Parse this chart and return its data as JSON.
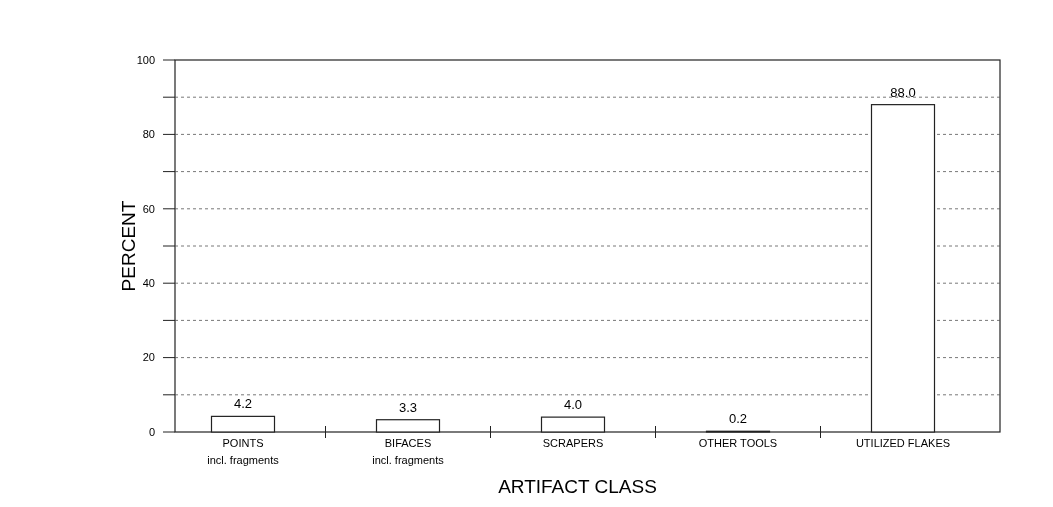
{
  "chart_data": {
    "type": "bar",
    "categories": [
      "POINTS\nincl. fragments",
      "BIFACES\nincl. fragments",
      "SCRAPERS",
      "OTHER TOOLS",
      "UTILIZED FLAKES"
    ],
    "values": [
      4.2,
      3.3,
      4.0,
      0.2,
      88.0
    ],
    "color": "#ffffff",
    "value_labels": [
      "4.2",
      "3.3",
      "4.0",
      "0.2",
      "88.0"
    ],
    "ylim": [
      0,
      100
    ],
    "yticks": [
      0,
      {
        "value": 10,
        "label": null
      },
      20,
      {
        "value": 30,
        "label": null
      },
      40,
      {
        "value": 50,
        "label": null
      },
      60,
      {
        "value": 70,
        "label": null
      },
      80,
      {
        "value": 90,
        "label": null
      },
      100
    ],
    "grid": "y",
    "xlabel": "ARTIFACT CLASS",
    "ylabel": "PERCENT"
  }
}
